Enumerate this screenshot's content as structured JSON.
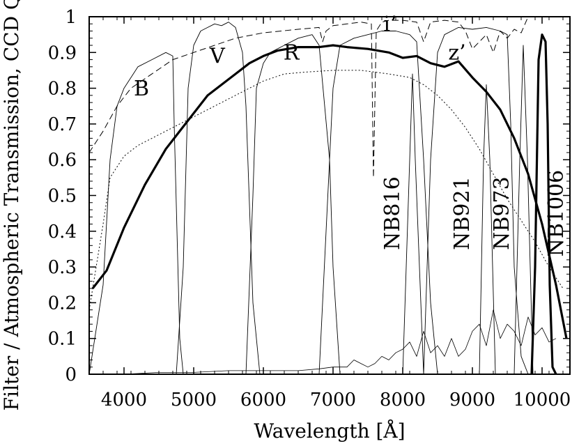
{
  "chart_data": {
    "type": "line",
    "xlabel": "Wavelength [Å]",
    "ylabel": "Filter / Atmospheric Transmission, CCD QE",
    "xlim": [
      3500,
      10400
    ],
    "ylim": [
      0,
      1
    ],
    "x_ticks": [
      4000,
      5000,
      6000,
      7000,
      8000,
      9000,
      10000
    ],
    "x_tick_labels": [
      "4000",
      "5000",
      "6000",
      "7000",
      "8000",
      "9000",
      "10000"
    ],
    "y_ticks": [
      0,
      0.1,
      0.2,
      0.3,
      0.4,
      0.5,
      0.6,
      0.7,
      0.8,
      0.9,
      1
    ],
    "y_tick_labels": [
      "0",
      "0.1",
      "0.2",
      "0.3",
      "0.4",
      "0.5",
      "0.6",
      "0.7",
      "0.8",
      "0.9",
      "1"
    ],
    "grid": false,
    "legend": "none",
    "filter_labels": [
      {
        "text": "B",
        "x": 4250,
        "y": 0.78,
        "rotate": false
      },
      {
        "text": "V",
        "x": 5340,
        "y": 0.87,
        "rotate": false
      },
      {
        "text": "R",
        "x": 6400,
        "y": 0.88,
        "rotate": false
      },
      {
        "text": "i’",
        "x": 7820,
        "y": 0.96,
        "rotate": false
      },
      {
        "text": "z’",
        "x": 8780,
        "y": 0.88,
        "rotate": false
      },
      {
        "text": "NB816",
        "x": 7950,
        "y": 0.45,
        "rotate": true
      },
      {
        "text": "NB921",
        "x": 8950,
        "y": 0.45,
        "rotate": true
      },
      {
        "text": "NB973",
        "x": 9520,
        "y": 0.45,
        "rotate": true
      },
      {
        "text": "NB1006",
        "x": 10300,
        "y": 0.45,
        "rotate": true
      }
    ],
    "series": [
      {
        "style": "thick",
        "x": [
          3550,
          3750,
          4000,
          4300,
          4600,
          5000,
          5200,
          5400,
          5600,
          5800,
          6000,
          6200,
          6500,
          6800,
          7000,
          7200,
          7500,
          7800,
          8000,
          8200,
          8400,
          8600,
          8800,
          9000,
          9200,
          9400,
          9600,
          9800,
          10000,
          10200,
          10350
        ],
        "y": [
          0.24,
          0.29,
          0.41,
          0.53,
          0.63,
          0.73,
          0.78,
          0.81,
          0.84,
          0.87,
          0.89,
          0.905,
          0.915,
          0.915,
          0.92,
          0.915,
          0.91,
          0.9,
          0.885,
          0.89,
          0.87,
          0.86,
          0.875,
          0.83,
          0.79,
          0.74,
          0.66,
          0.56,
          0.42,
          0.25,
          0.1
        ]
      },
      {
        "style": "dashed",
        "x": [
          3500,
          3700,
          3900,
          4100,
          4400,
          4700,
          5000,
          5300,
          5600,
          6000,
          6500,
          6800,
          6850,
          6900,
          7000,
          7200,
          7400,
          7550,
          7580,
          7620,
          7700,
          7800,
          8000,
          8200,
          8300,
          8400,
          8600,
          8800,
          8900,
          9000,
          9100,
          9200,
          9300,
          9400,
          9500,
          9600,
          9700,
          9800
        ],
        "y": [
          0.62,
          0.68,
          0.75,
          0.8,
          0.84,
          0.88,
          0.9,
          0.92,
          0.94,
          0.955,
          0.965,
          0.97,
          0.93,
          0.96,
          0.975,
          0.98,
          0.985,
          0.98,
          0.55,
          0.96,
          0.985,
          0.99,
          0.99,
          0.985,
          0.93,
          0.985,
          0.99,
          0.985,
          0.96,
          0.91,
          0.93,
          0.95,
          0.9,
          0.96,
          0.94,
          0.965,
          0.955,
          1.0
        ]
      },
      {
        "style": "dotted",
        "x": [
          3500,
          3700,
          3800,
          4000,
          4200,
          4500,
          4800,
          5100,
          5400,
          5700,
          6000,
          6300,
          6600,
          7000,
          7400,
          7800,
          8100,
          8300,
          8500,
          8700,
          8900,
          9100,
          9300,
          9500,
          9700,
          9900,
          10100,
          10300
        ],
        "y": [
          0.18,
          0.42,
          0.55,
          0.61,
          0.64,
          0.67,
          0.7,
          0.73,
          0.76,
          0.79,
          0.82,
          0.84,
          0.845,
          0.85,
          0.85,
          0.84,
          0.83,
          0.81,
          0.78,
          0.74,
          0.69,
          0.63,
          0.56,
          0.49,
          0.43,
          0.37,
          0.3,
          0.24
        ]
      },
      {
        "style": "thin",
        "x": [
          3500,
          3700,
          3800,
          3900,
          4000,
          4200,
          4400,
          4600,
          4700,
          4720,
          4800,
          4850
        ],
        "y": [
          0.0,
          0.25,
          0.6,
          0.75,
          0.8,
          0.86,
          0.88,
          0.9,
          0.89,
          0.7,
          0.1,
          0.0
        ]
      },
      {
        "style": "thin",
        "x": [
          4750,
          4850,
          4920,
          5000,
          5100,
          5200,
          5300,
          5400,
          5500,
          5600,
          5700,
          5750,
          5850,
          5950
        ],
        "y": [
          0.0,
          0.3,
          0.8,
          0.92,
          0.96,
          0.97,
          0.98,
          0.975,
          0.985,
          0.97,
          0.9,
          0.75,
          0.2,
          0.0
        ]
      },
      {
        "style": "thin",
        "x": [
          5750,
          5850,
          5900,
          6000,
          6100,
          6300,
          6500,
          6700,
          6800,
          6950,
          7000,
          7100
        ],
        "y": [
          0.0,
          0.5,
          0.8,
          0.87,
          0.9,
          0.92,
          0.94,
          0.95,
          0.92,
          0.6,
          0.3,
          0.0
        ]
      },
      {
        "style": "thin",
        "x": [
          6800,
          6900,
          7000,
          7100,
          7300,
          7500,
          7700,
          7900,
          8100,
          8200,
          8300,
          8400,
          8500
        ],
        "y": [
          0.0,
          0.4,
          0.8,
          0.92,
          0.94,
          0.95,
          0.96,
          0.96,
          0.95,
          0.93,
          0.6,
          0.2,
          0.0
        ]
      },
      {
        "style": "thin",
        "x": [
          8000,
          8100,
          8140,
          8180,
          8300
        ],
        "y": [
          0.0,
          0.6,
          0.84,
          0.6,
          0.0
        ]
      },
      {
        "style": "thin",
        "x": [
          8300,
          8400,
          8500,
          8600,
          8800,
          9000,
          9200,
          9400,
          9500,
          9550,
          9600,
          9700,
          9800
        ],
        "y": [
          0.0,
          0.6,
          0.9,
          0.95,
          0.97,
          0.965,
          0.97,
          0.96,
          0.95,
          0.7,
          0.3,
          0.05,
          0.0
        ]
      },
      {
        "style": "thin",
        "x": [
          9100,
          9160,
          9200,
          9250,
          9330
        ],
        "y": [
          0.0,
          0.6,
          0.81,
          0.6,
          0.0
        ]
      },
      {
        "style": "thin",
        "x": [
          9600,
          9680,
          9730,
          9790,
          9870
        ],
        "y": [
          0.0,
          0.6,
          0.92,
          0.6,
          0.0
        ]
      },
      {
        "style": "thick",
        "x": [
          9850,
          9900,
          9950,
          10000,
          10050,
          10080,
          10110,
          10150,
          10200
        ],
        "y": [
          0.0,
          0.3,
          0.88,
          0.95,
          0.93,
          0.7,
          0.25,
          0.02,
          0.0
        ]
      },
      {
        "style": "noise",
        "x": [
          3500,
          4000,
          4500,
          5000,
          5500,
          6000,
          6500,
          6800,
          7000,
          7200,
          7300,
          7400,
          7500,
          7600,
          7700,
          7800,
          7900,
          8000,
          8100,
          8200,
          8300,
          8400,
          8500,
          8600,
          8700,
          8800,
          8900,
          9000,
          9100,
          9200,
          9300,
          9400,
          9500,
          9600,
          9700,
          9800,
          9900,
          10000,
          10100,
          10200
        ],
        "y": [
          0.0,
          0.0,
          0.005,
          0.005,
          0.01,
          0.01,
          0.01,
          0.015,
          0.02,
          0.02,
          0.04,
          0.03,
          0.02,
          0.03,
          0.05,
          0.04,
          0.06,
          0.07,
          0.09,
          0.05,
          0.12,
          0.06,
          0.08,
          0.05,
          0.1,
          0.05,
          0.07,
          0.12,
          0.14,
          0.08,
          0.18,
          0.1,
          0.14,
          0.12,
          0.08,
          0.16,
          0.11,
          0.13,
          0.09,
          0.1
        ]
      }
    ]
  }
}
